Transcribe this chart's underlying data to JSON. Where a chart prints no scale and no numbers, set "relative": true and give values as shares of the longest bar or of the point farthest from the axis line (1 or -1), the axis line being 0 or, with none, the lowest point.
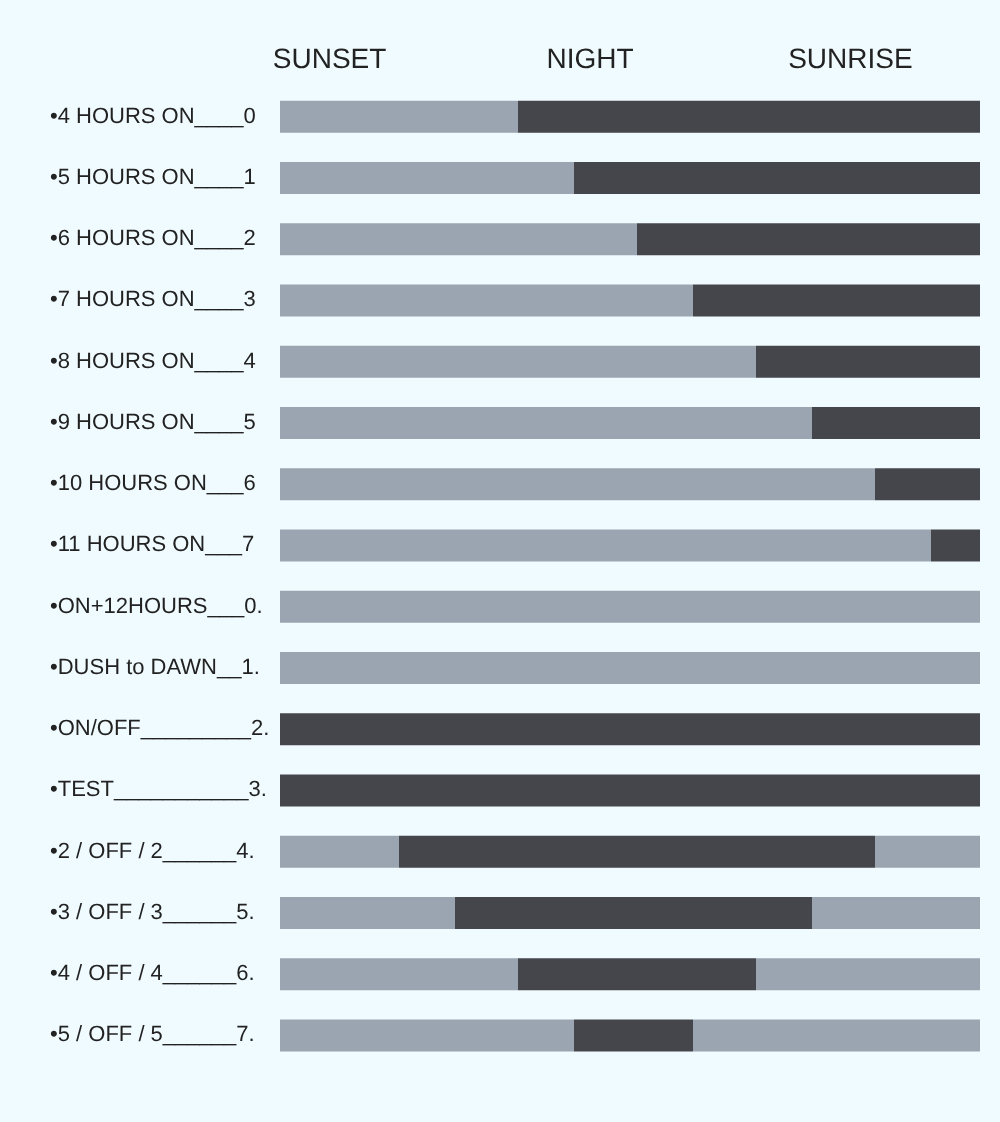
{
  "chart_data": {
    "type": "bar",
    "orientation": "horizontal",
    "stacked": true,
    "relative": true,
    "annotations": [
      "SUNSET",
      "NIGHT",
      "SUNRISE"
    ],
    "categories": [
      "•4 HOURS ON____0",
      "•5 HOURS ON____1",
      "•6 HOURS ON____2",
      "•7 HOURS ON____3",
      "•8 HOURS ON____4",
      "•9 HOURS ON____5",
      "•10 HOURS ON___6",
      "•11 HOURS ON___7",
      "•ON+12HOURS___0.",
      "•DUSH to DAWN__1.",
      "•ON/OFF_________2.",
      "•TEST___________3.",
      "•2 / OFF / 2______4.",
      "•3 / OFF / 3______5.",
      "•4 / OFF / 4______6.",
      "•5 / OFF / 5______7."
    ],
    "series": [
      {
        "color": "#9aa5b1",
        "values": [
          0.34,
          0.42,
          0.51,
          0.59,
          0.68,
          0.76,
          0.85,
          0.93,
          1,
          1,
          0,
          0,
          0.17,
          0.25,
          0.34,
          0.42
        ]
      },
      {
        "color": "#45464b",
        "values": [
          0.66,
          0.58,
          0.49,
          0.41,
          0.32,
          0.24,
          0.15,
          0.07,
          0,
          0,
          1,
          1,
          0.68,
          0.51,
          0.34,
          0.17
        ]
      },
      {
        "color": "#9aa5b1",
        "values": [
          0,
          0,
          0,
          0,
          0,
          0,
          0,
          0,
          0,
          0,
          0,
          0,
          0.15,
          0.24,
          0.32,
          0.41
        ]
      }
    ]
  }
}
